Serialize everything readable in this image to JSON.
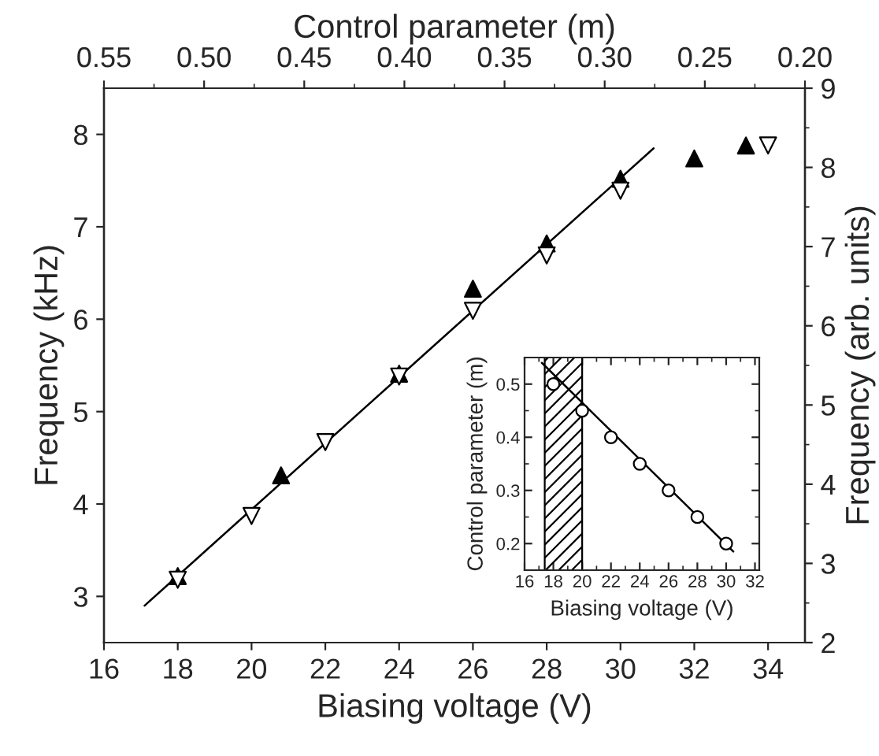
{
  "chart_data": [
    {
      "type": "scatter",
      "xlabel": "Biasing voltage (V)",
      "ylabel": "Frequency (kHz)",
      "y2label": "Frequency (arb. units)",
      "x2label": "Control parameter (m)",
      "xlim": [
        16,
        35
      ],
      "xticks": [
        16,
        18,
        20,
        22,
        24,
        26,
        28,
        30,
        32,
        34
      ],
      "ylim": [
        2.5,
        8.5
      ],
      "yticks": [
        3,
        4,
        5,
        6,
        7,
        8
      ],
      "y2lim": [
        2,
        9
      ],
      "y2ticks": [
        2,
        3,
        4,
        5,
        6,
        7,
        8,
        9
      ],
      "x2lim": [
        0.55,
        0.2
      ],
      "x2ticks": [
        {
          "value": 0.55,
          "label": "0.55"
        },
        {
          "value": 0.5,
          "label": "0.50"
        },
        {
          "value": 0.45,
          "label": "0.45"
        },
        {
          "value": 0.4,
          "label": "0.40"
        },
        {
          "value": 0.35,
          "label": "0.35"
        },
        {
          "value": 0.3,
          "label": "0.30"
        },
        {
          "value": 0.25,
          "label": "0.25"
        },
        {
          "value": 0.2,
          "label": "0.20"
        }
      ],
      "grid": false,
      "legend": false,
      "series": [
        {
          "type": "scatter",
          "marker": "triangle",
          "color": "#000000",
          "x": [
            18,
            20.8,
            24,
            26,
            28,
            30,
            32,
            33.4
          ],
          "values": [
            3.22,
            4.31,
            5.41,
            6.33,
            6.82,
            7.52,
            7.74,
            7.88
          ]
        },
        {
          "type": "scatter",
          "marker": "triangle_down",
          "color": "#000000",
          "x": [
            18,
            20,
            22,
            24,
            26,
            28,
            30,
            34
          ],
          "values": [
            3.18,
            3.87,
            4.67,
            5.38,
            6.09,
            6.69,
            7.39,
            7.88
          ]
        },
        {
          "type": "line",
          "marker": "none",
          "color": "#000000",
          "x": [
            17.1,
            30.9
          ],
          "values": [
            2.9,
            7.85
          ]
        }
      ]
    },
    {
      "type": "scatter",
      "xlabel": "Biasing voltage (V)",
      "ylabel": "Control parameter (m)",
      "xlim": [
        16,
        32.3
      ],
      "xticks": [
        16,
        18,
        20,
        22,
        24,
        26,
        28,
        30,
        32
      ],
      "ylim": [
        0.15,
        0.55
      ],
      "yticks": [
        {
          "value": 0.2,
          "label": "0.2"
        },
        {
          "value": 0.3,
          "label": "0.3"
        },
        {
          "value": 0.4,
          "label": "0.4"
        },
        {
          "value": 0.5,
          "label": "0.5"
        }
      ],
      "grid": false,
      "legend": false,
      "bands": [
        {
          "axis": "x",
          "from": 17.4,
          "to": 20,
          "color": "#000000"
        }
      ],
      "series": [
        {
          "type": "scatter",
          "marker": "circle",
          "color": "#000000",
          "x": [
            18,
            20,
            22,
            24,
            26,
            28,
            30
          ],
          "values": [
            0.5,
            0.45,
            0.4,
            0.35,
            0.3,
            0.25,
            0.2
          ]
        },
        {
          "type": "line",
          "marker": "none",
          "color": "#000000",
          "x": [
            17.2,
            30.5
          ],
          "values": [
            0.54,
            0.185
          ]
        }
      ]
    }
  ]
}
